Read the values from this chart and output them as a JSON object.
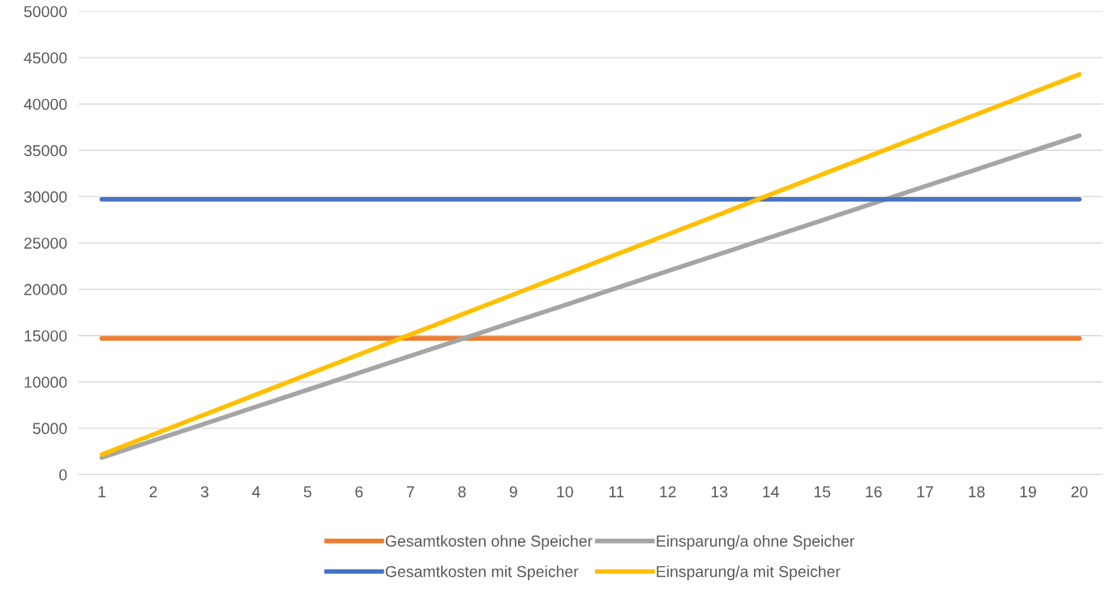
{
  "chart_data": {
    "type": "line",
    "categories": [
      "1",
      "2",
      "3",
      "4",
      "5",
      "6",
      "7",
      "8",
      "9",
      "10",
      "11",
      "12",
      "13",
      "14",
      "15",
      "16",
      "17",
      "18",
      "19",
      "20"
    ],
    "series": [
      {
        "name": "Gesamtkosten ohne Speicher",
        "color": "#ed7d31",
        "values": [
          14700,
          14700,
          14700,
          14700,
          14700,
          14700,
          14700,
          14700,
          14700,
          14700,
          14700,
          14700,
          14700,
          14700,
          14700,
          14700,
          14700,
          14700,
          14700,
          14700
        ]
      },
      {
        "name": "Einsparung/a ohne Speicher",
        "color": "#a5a5a5",
        "values": [
          1830,
          3660,
          5490,
          7320,
          9150,
          10980,
          12810,
          14640,
          16470,
          18300,
          20130,
          21960,
          23790,
          25620,
          27450,
          29280,
          31110,
          32940,
          34770,
          36600
        ]
      },
      {
        "name": "Gesamtkosten mit Speicher",
        "color": "#4472c4",
        "values": [
          29700,
          29700,
          29700,
          29700,
          29700,
          29700,
          29700,
          29700,
          29700,
          29700,
          29700,
          29700,
          29700,
          29700,
          29700,
          29700,
          29700,
          29700,
          29700,
          29700
        ]
      },
      {
        "name": "Einsparung/a mit Speicher",
        "color": "#ffc000",
        "values": [
          2160,
          4320,
          6480,
          8640,
          10800,
          12960,
          15120,
          17280,
          19440,
          21600,
          23760,
          25920,
          28080,
          30240,
          32400,
          34560,
          36720,
          38880,
          41040,
          43200
        ]
      }
    ],
    "ylim": [
      0,
      50000
    ],
    "yticks": [
      0,
      5000,
      10000,
      15000,
      20000,
      25000,
      30000,
      35000,
      40000,
      45000,
      50000
    ],
    "grid": "y",
    "legend": "bottom",
    "marker": "none",
    "line_style": "solid"
  }
}
